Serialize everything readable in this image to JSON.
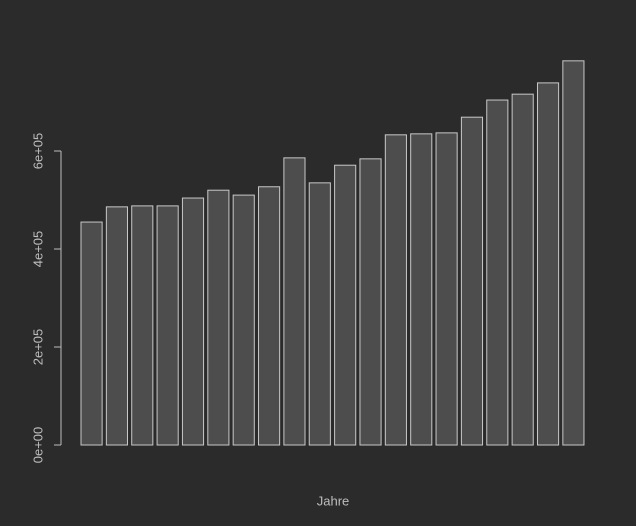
{
  "chart_data": {
    "type": "bar",
    "x_label": "Jahre",
    "categories": [
      null,
      null,
      null,
      null,
      null,
      null,
      null,
      null,
      null,
      null,
      null,
      null,
      null,
      null,
      null,
      null,
      null,
      null,
      null,
      null
    ],
    "values": [
      455000,
      486000,
      488000,
      488000,
      504000,
      520000,
      510000,
      527000,
      586000,
      535000,
      571000,
      584000,
      633000,
      635000,
      637000,
      669000,
      704000,
      716000,
      739000,
      784000
    ],
    "color": "#4d4d4d",
    "edge_color": "#c8c8c8",
    "ylim": [
      0,
      800000
    ],
    "yticks": [
      {
        "value": 0,
        "label": "0e+00"
      },
      {
        "value": 200000,
        "label": "2e+05"
      },
      {
        "value": 400000,
        "label": "4e+05"
      },
      {
        "value": 600000,
        "label": "6e+05"
      }
    ],
    "grid": false
  }
}
